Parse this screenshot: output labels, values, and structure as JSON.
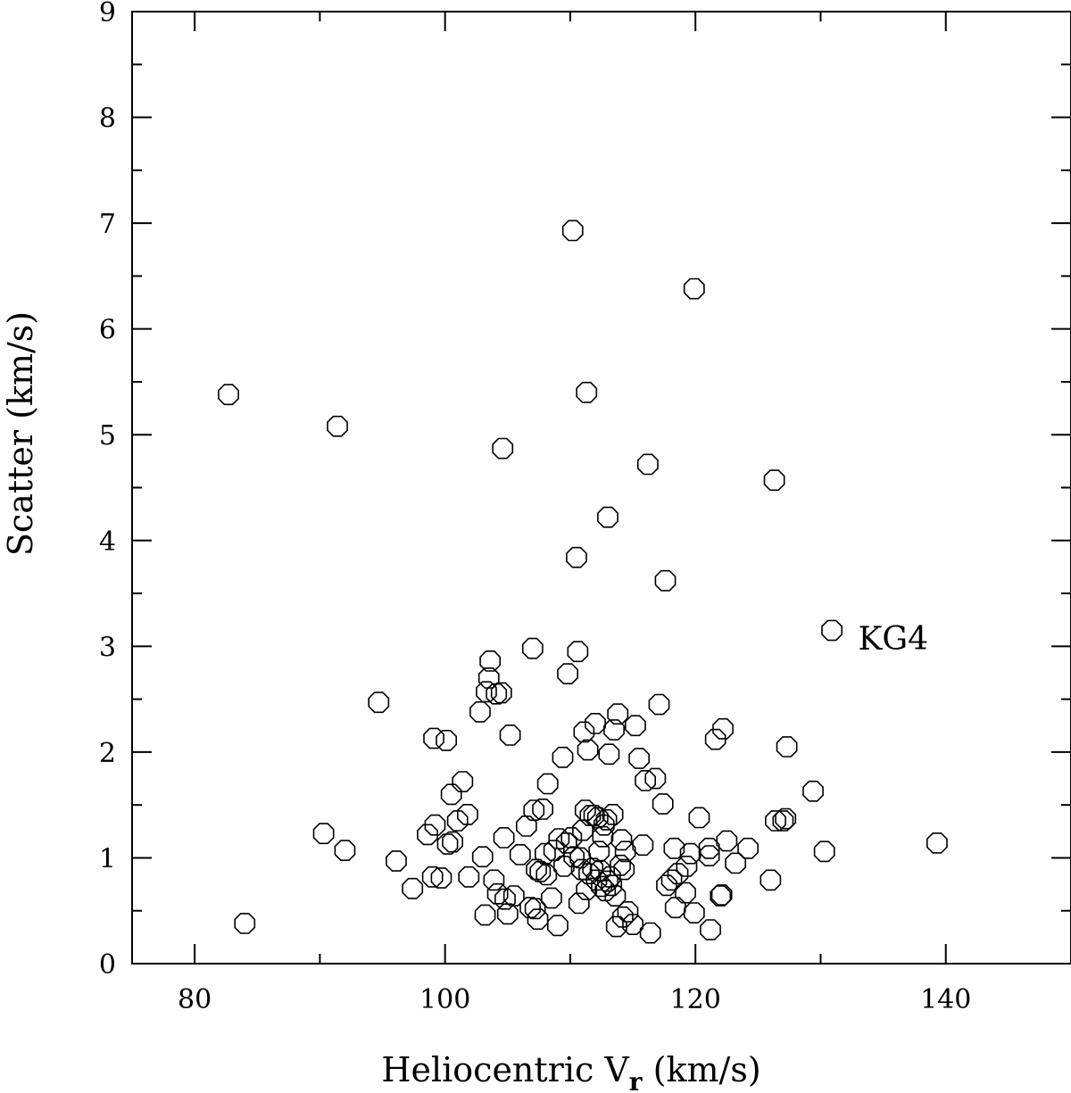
{
  "chart_data": {
    "type": "scatter",
    "title": "",
    "xlabel": "Heliocentric V",
    "xlabel_sub": "r",
    "xlabel_units": " (km/s)",
    "ylabel": "Scatter (km/s)",
    "xlim": [
      75,
      150
    ],
    "ylim": [
      0,
      9
    ],
    "x_ticks": [
      80,
      100,
      120,
      140
    ],
    "y_ticks": [
      0,
      1,
      2,
      3,
      4,
      5,
      6,
      7,
      8,
      9
    ],
    "marker": "open-octagon",
    "annotation": {
      "text": "KG4",
      "x": 133.0,
      "y": 2.97
    },
    "points": [
      [
        82.7,
        5.38
      ],
      [
        84.0,
        0.38
      ],
      [
        90.3,
        1.23
      ],
      [
        91.4,
        5.08
      ],
      [
        92.0,
        1.07
      ],
      [
        94.7,
        2.47
      ],
      [
        96.1,
        0.97
      ],
      [
        97.4,
        0.71
      ],
      [
        98.6,
        1.22
      ],
      [
        99.0,
        0.82
      ],
      [
        99.1,
        2.13
      ],
      [
        99.2,
        1.31
      ],
      [
        99.7,
        0.81
      ],
      [
        100.1,
        2.11
      ],
      [
        100.2,
        1.13
      ],
      [
        100.5,
        1.6
      ],
      [
        100.6,
        1.15
      ],
      [
        101.0,
        1.35
      ],
      [
        101.4,
        1.72
      ],
      [
        101.8,
        1.41
      ],
      [
        101.9,
        0.82
      ],
      [
        102.8,
        2.38
      ],
      [
        103.0,
        1.01
      ],
      [
        103.2,
        0.46
      ],
      [
        103.3,
        2.57
      ],
      [
        103.5,
        2.7
      ],
      [
        103.6,
        2.86
      ],
      [
        103.9,
        0.79
      ],
      [
        104.1,
        2.55
      ],
      [
        104.2,
        0.66
      ],
      [
        104.5,
        2.56
      ],
      [
        104.6,
        4.87
      ],
      [
        104.7,
        1.19
      ],
      [
        104.8,
        0.61
      ],
      [
        105.0,
        0.47
      ],
      [
        105.2,
        2.16
      ],
      [
        105.5,
        0.64
      ],
      [
        106.0,
        1.03
      ],
      [
        106.5,
        1.3
      ],
      [
        106.8,
        0.53
      ],
      [
        107.0,
        2.98
      ],
      [
        107.1,
        1.45
      ],
      [
        107.2,
        0.52
      ],
      [
        107.3,
        0.89
      ],
      [
        107.4,
        0.42
      ],
      [
        107.6,
        0.87
      ],
      [
        107.8,
        1.46
      ],
      [
        108.0,
        1.04
      ],
      [
        108.1,
        0.84
      ],
      [
        108.2,
        1.7
      ],
      [
        108.5,
        0.62
      ],
      [
        108.7,
        1.07
      ],
      [
        109.0,
        0.36
      ],
      [
        109.1,
        1.18
      ],
      [
        109.4,
        1.95
      ],
      [
        109.5,
        0.92
      ],
      [
        109.7,
        1.14
      ],
      [
        109.8,
        2.74
      ],
      [
        110.1,
        1.19
      ],
      [
        110.2,
        6.93
      ],
      [
        110.3,
        1.01
      ],
      [
        110.5,
        3.84
      ],
      [
        110.6,
        2.95
      ],
      [
        110.7,
        0.57
      ],
      [
        110.8,
        1.0
      ],
      [
        110.9,
        0.89
      ],
      [
        111.0,
        1.26
      ],
      [
        111.1,
        2.19
      ],
      [
        111.2,
        1.45
      ],
      [
        111.3,
        5.4
      ],
      [
        111.3,
        0.7
      ],
      [
        111.4,
        2.02
      ],
      [
        111.5,
        0.85
      ],
      [
        111.6,
        1.4
      ],
      [
        111.8,
        0.9
      ],
      [
        111.9,
        1.4
      ],
      [
        112.0,
        2.27
      ],
      [
        112.1,
        0.79
      ],
      [
        112.2,
        1.38
      ],
      [
        112.3,
        1.06
      ],
      [
        112.4,
        0.88
      ],
      [
        112.5,
        0.73
      ],
      [
        112.6,
        1.2
      ],
      [
        112.7,
        1.31
      ],
      [
        112.8,
        0.69
      ],
      [
        112.9,
        1.36
      ],
      [
        113.0,
        4.22
      ],
      [
        113.0,
        0.78
      ],
      [
        113.1,
        1.98
      ],
      [
        113.2,
        0.82
      ],
      [
        113.3,
        0.74
      ],
      [
        113.4,
        1.41
      ],
      [
        113.5,
        2.21
      ],
      [
        113.6,
        0.64
      ],
      [
        113.7,
        0.35
      ],
      [
        113.8,
        2.36
      ],
      [
        114.0,
        0.93
      ],
      [
        114.1,
        1.17
      ],
      [
        114.2,
        0.44
      ],
      [
        114.3,
        0.89
      ],
      [
        114.4,
        1.06
      ],
      [
        114.6,
        0.49
      ],
      [
        115.0,
        0.37
      ],
      [
        115.2,
        2.25
      ],
      [
        115.5,
        1.94
      ],
      [
        115.8,
        1.12
      ],
      [
        116.0,
        1.73
      ],
      [
        116.2,
        4.72
      ],
      [
        116.4,
        0.29
      ],
      [
        116.8,
        1.75
      ],
      [
        117.1,
        2.45
      ],
      [
        117.4,
        1.51
      ],
      [
        117.6,
        3.62
      ],
      [
        117.7,
        0.74
      ],
      [
        118.1,
        0.79
      ],
      [
        118.3,
        1.09
      ],
      [
        118.4,
        0.53
      ],
      [
        118.6,
        0.85
      ],
      [
        119.2,
        0.67
      ],
      [
        119.3,
        0.92
      ],
      [
        119.6,
        1.04
      ],
      [
        119.9,
        6.38
      ],
      [
        119.9,
        0.48
      ],
      [
        120.3,
        1.38
      ],
      [
        121.1,
        1.09
      ],
      [
        121.1,
        1.02
      ],
      [
        121.2,
        0.32
      ],
      [
        121.6,
        2.12
      ],
      [
        122.0,
        0.64
      ],
      [
        122.1,
        0.65
      ],
      [
        122.2,
        2.22
      ],
      [
        122.5,
        1.16
      ],
      [
        123.2,
        0.95
      ],
      [
        124.2,
        1.09
      ],
      [
        126.0,
        0.79
      ],
      [
        126.3,
        4.57
      ],
      [
        126.4,
        1.35
      ],
      [
        127.0,
        1.35
      ],
      [
        127.3,
        2.05
      ],
      [
        127.2,
        1.37
      ],
      [
        129.4,
        1.63
      ],
      [
        130.3,
        1.06
      ],
      [
        130.9,
        3.15
      ],
      [
        139.3,
        1.14
      ]
    ]
  }
}
